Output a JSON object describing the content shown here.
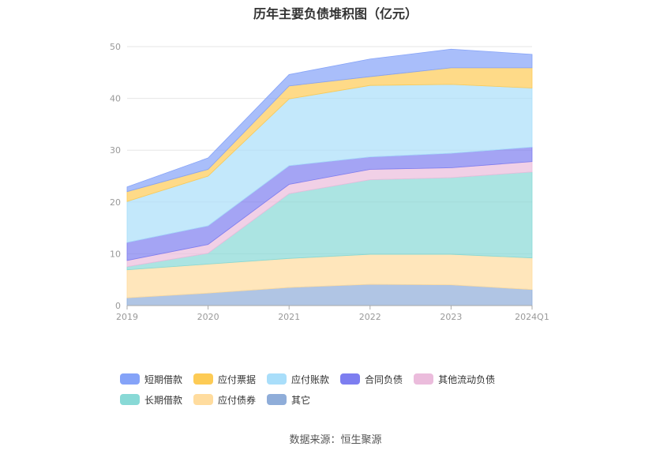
{
  "chart_data": {
    "type": "area",
    "stacked": true,
    "title": "历年主要负债堆积图（亿元）",
    "categories": [
      "2019",
      "2020",
      "2021",
      "2022",
      "2023",
      "2024Q1"
    ],
    "ylim": [
      0,
      50
    ],
    "yticks": [
      0,
      10,
      20,
      30,
      40,
      50
    ],
    "grid": true,
    "legend_position": "bottom",
    "series": [
      {
        "name": "其它",
        "color": "#8fadd9",
        "values": [
          1.5,
          2.4,
          3.5,
          4.1,
          4.0,
          3.1
        ]
      },
      {
        "name": "应付债券",
        "color": "#ffdc9e",
        "values": [
          5.4,
          5.6,
          5.6,
          5.8,
          5.9,
          6.1
        ]
      },
      {
        "name": "长期借款",
        "color": "#88d9d6",
        "values": [
          0.6,
          2.1,
          12.5,
          14.4,
          14.8,
          16.6
        ]
      },
      {
        "name": "其他流动负债",
        "color": "#ebbcdc",
        "values": [
          1.2,
          1.7,
          1.8,
          2.0,
          1.9,
          2.0
        ]
      },
      {
        "name": "合同负债",
        "color": "#7d7ef0",
        "values": [
          3.5,
          3.6,
          3.6,
          2.4,
          2.8,
          2.8
        ]
      },
      {
        "name": "应付账款",
        "color": "#a9defa",
        "values": [
          7.9,
          9.6,
          12.9,
          13.8,
          13.3,
          11.4
        ]
      },
      {
        "name": "应付票据",
        "color": "#fdcb55",
        "values": [
          1.9,
          1.3,
          2.5,
          1.7,
          3.2,
          3.9
        ]
      },
      {
        "name": "短期借款",
        "color": "#85a3f8",
        "values": [
          0.9,
          2.2,
          2.2,
          3.4,
          3.6,
          2.6
        ]
      }
    ]
  },
  "legend": [
    {
      "label": "短期借款",
      "color": "#85a3f8"
    },
    {
      "label": "应付票据",
      "color": "#fdcb55"
    },
    {
      "label": "应付账款",
      "color": "#a9defa"
    },
    {
      "label": "合同负债",
      "color": "#7d7ef0"
    },
    {
      "label": "其他流动负债",
      "color": "#ebbcdc"
    },
    {
      "label": "长期借款",
      "color": "#88d9d6"
    },
    {
      "label": "应付债券",
      "color": "#ffdc9e"
    },
    {
      "label": "其它",
      "color": "#8fadd9"
    }
  ],
  "source": "数据来源：恒生聚源"
}
